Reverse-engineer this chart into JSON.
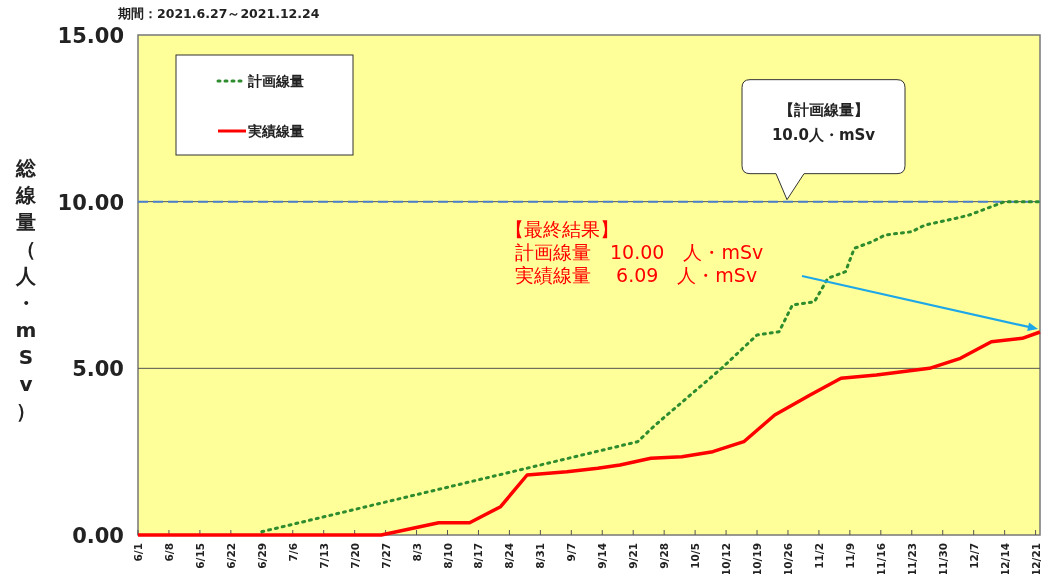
{
  "chart_data": {
    "type": "line",
    "title": "期間：2021.6.27～2021.12.24",
    "ylabel": "総線量（人・mSv）",
    "xlim": [
      "--06-01",
      "--12-22"
    ],
    "xticks": [
      {
        "value": "--06-01",
        "label": "6/1"
      },
      {
        "value": "--06-08",
        "label": "6/8"
      },
      {
        "value": "--06-15",
        "label": "6/15"
      },
      {
        "value": "--06-22",
        "label": "6/22"
      },
      {
        "value": "--06-29",
        "label": "6/29"
      },
      {
        "value": "--07-06",
        "label": "7/6"
      },
      {
        "value": "--07-13",
        "label": "7/13"
      },
      {
        "value": "--07-20",
        "label": "7/20"
      },
      {
        "value": "--07-27",
        "label": "7/27"
      },
      {
        "value": "--08-03",
        "label": "8/3"
      },
      {
        "value": "--08-10",
        "label": "8/10"
      },
      {
        "value": "--08-17",
        "label": "8/17"
      },
      {
        "value": "--08-24",
        "label": "8/24"
      },
      {
        "value": "--08-31",
        "label": "8/31"
      },
      {
        "value": "--09-07",
        "label": "9/7"
      },
      {
        "value": "--09-14",
        "label": "9/14"
      },
      {
        "value": "--09-21",
        "label": "9/21"
      },
      {
        "value": "--09-28",
        "label": "9/28"
      },
      {
        "value": "--10-05",
        "label": "10/5"
      },
      {
        "value": "--10-12",
        "label": "10/12"
      },
      {
        "value": "--10-19",
        "label": "10/19"
      },
      {
        "value": "--10-26",
        "label": "10/26"
      },
      {
        "value": "--11-02",
        "label": "11/2"
      },
      {
        "value": "--11-09",
        "label": "11/9"
      },
      {
        "value": "--11-16",
        "label": "11/16"
      },
      {
        "value": "--11-23",
        "label": "11/23"
      },
      {
        "value": "--11-30",
        "label": "11/30"
      },
      {
        "value": "--12-07",
        "label": "12/7"
      },
      {
        "value": "--12-14",
        "label": "12/14"
      },
      {
        "value": "--12-21",
        "label": "12/21"
      }
    ],
    "ylim": [
      0,
      15
    ],
    "yticks": [
      {
        "value": 0,
        "label": "0.00"
      },
      {
        "value": 5,
        "label": "5.00"
      },
      {
        "value": 10,
        "label": "10.00"
      },
      {
        "value": 15,
        "label": "15.00"
      }
    ],
    "grid": "y",
    "legend": "top left",
    "series": [
      {
        "name": "計画線量",
        "color": "#2e8b2e",
        "line_style": "dotted",
        "x": [
          "--06-29",
          "--09-22",
          "--09-26",
          "--10-11",
          "--10-19",
          "--10-24",
          "--10-27",
          "--11-01",
          "--11-04",
          "--11-08",
          "--11-10",
          "--11-14",
          "--11-17",
          "--11-23",
          "--11-26",
          "--12-03",
          "--12-06",
          "--12-14",
          "--12-22"
        ],
        "values": [
          0.1,
          2.8,
          3.3,
          5.0,
          6.0,
          6.1,
          6.9,
          7.0,
          7.7,
          7.9,
          8.6,
          8.8,
          9.0,
          9.1,
          9.3,
          9.5,
          9.6,
          10.0,
          10.0
        ]
      },
      {
        "name": "実績線量",
        "color": "#ff0000",
        "line_style": "solid",
        "x": [
          "--06-01",
          "--07-26",
          "--08-08",
          "--08-15",
          "--08-22",
          "--08-28",
          "--09-06",
          "--09-13",
          "--09-18",
          "--09-25",
          "--10-02",
          "--10-09",
          "--10-16",
          "--10-23",
          "--10-31",
          "--11-07",
          "--11-15",
          "--11-27",
          "--12-04",
          "--12-11",
          "--12-18",
          "--12-22"
        ],
        "values": [
          0,
          0,
          0.37,
          0.37,
          0.85,
          1.8,
          1.9,
          2.0,
          2.1,
          2.3,
          2.35,
          2.5,
          2.8,
          3.6,
          4.2,
          4.7,
          4.8,
          5.0,
          5.3,
          5.8,
          5.9,
          6.09
        ]
      }
    ],
    "ref_lines": [
      {
        "axis": "y",
        "value": 10,
        "color": "#4a7fd0",
        "line_style": "dashed"
      }
    ],
    "annotations": [
      "【計画線量】",
      "10.0人・mSv",
      "【最終結果】",
      "計画線量　10.00　人・mSv",
      "実績線量　 6.09　人・mSv"
    ]
  }
}
